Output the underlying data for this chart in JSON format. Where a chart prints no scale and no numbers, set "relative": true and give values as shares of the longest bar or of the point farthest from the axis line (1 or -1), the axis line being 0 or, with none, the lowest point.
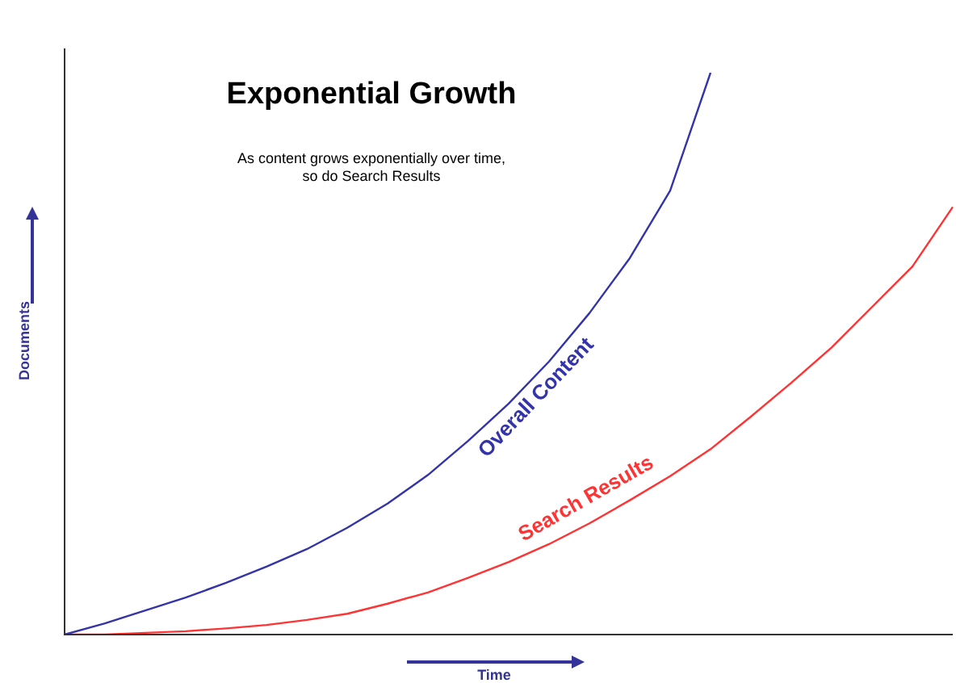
{
  "chart_data": {
    "type": "line",
    "title": "Exponential Growth",
    "subtitle": "As content grows exponentially over time, so do Search Results",
    "xlabel": "Time",
    "ylabel": "Documents",
    "relative": true,
    "legend": false,
    "marker": "none",
    "line_style": "solid",
    "categories": [
      null,
      null,
      null,
      null,
      null,
      null,
      null,
      null,
      null,
      null,
      null,
      null,
      null,
      null,
      null,
      null,
      null,
      null,
      null,
      null,
      null,
      null,
      null
    ],
    "series": [
      {
        "name": "Overall Content",
        "color": "#3333aa",
        "values": [
          0,
          0.02,
          0.043,
          0.066,
          0.092,
          0.121,
          0.152,
          0.19,
          0.233,
          0.284,
          0.345,
          0.411,
          0.486,
          0.572,
          0.67,
          0.79,
          1,
          null,
          null,
          null,
          null,
          null,
          null
        ]
      },
      {
        "name": "Search Results",
        "color": "#ff3333",
        "values": [
          0,
          0,
          0.003,
          0.006,
          0.011,
          0.017,
          0.026,
          0.037,
          0.055,
          0.075,
          0.101,
          0.129,
          0.161,
          0.198,
          0.239,
          0.282,
          0.33,
          0.388,
          0.448,
          0.511,
          0.583,
          0.655,
          0.761
        ]
      }
    ]
  }
}
